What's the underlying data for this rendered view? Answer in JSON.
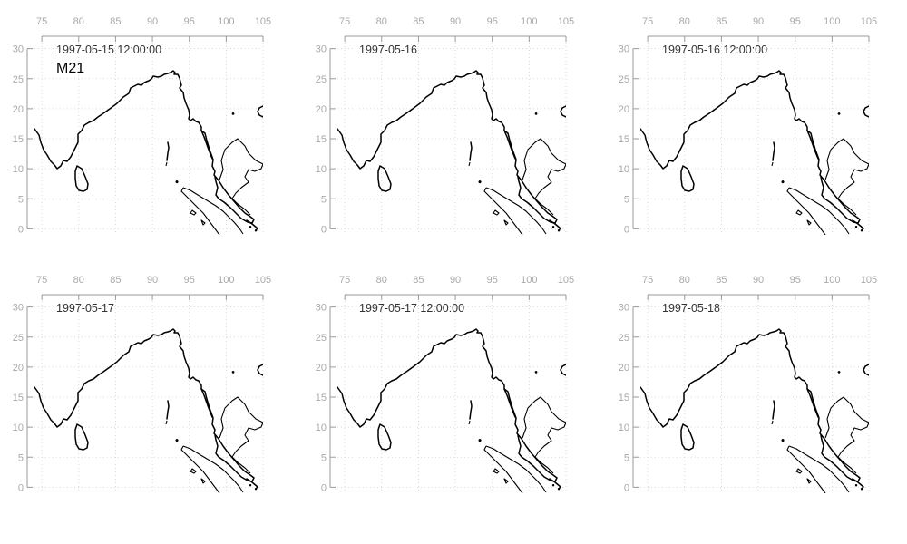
{
  "figure": {
    "model_label": "M21",
    "x_axis_ticks": [
      "75",
      "80",
      "85",
      "90",
      "95",
      "100",
      "105"
    ],
    "y_axis_ticks": [
      "0",
      "5",
      "10",
      "15",
      "20",
      "25",
      "30"
    ],
    "x_range_degrees_east": [
      74,
      105
    ],
    "y_range_degrees_north": [
      -1,
      31
    ],
    "grid": "dotted",
    "panels": [
      {
        "time": "1997-05-15 12:00:00",
        "row": 0,
        "col": 0
      },
      {
        "time": "1997-05-16",
        "row": 0,
        "col": 1
      },
      {
        "time": "1997-05-16 12:00:00",
        "row": 0,
        "col": 2
      },
      {
        "time": "1997-05-17",
        "row": 1,
        "col": 0
      },
      {
        "time": "1997-05-17 12:00:00",
        "row": 1,
        "col": 1
      },
      {
        "time": "1997-05-18",
        "row": 1,
        "col": 2
      }
    ],
    "coastline_regions": [
      "India",
      "Sri Lanka",
      "Andaman Islands",
      "Myanmar",
      "Thailand",
      "Malay Peninsula",
      "Sumatra",
      "Hainan"
    ],
    "colors": {
      "coastline": "#000000",
      "axis": "#9a9a9a",
      "grid": "#cfcfcf",
      "tick_label": "#a9a9a9"
    }
  }
}
